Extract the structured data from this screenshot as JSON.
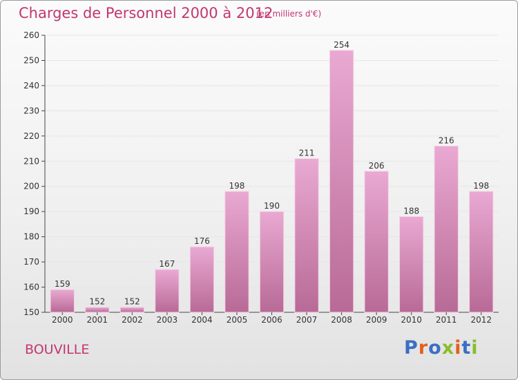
{
  "header": {
    "title": "Charges de Personnel 2000 à 2012",
    "subtitle": "(en milliers d'€)"
  },
  "footer": {
    "city": "BOUVILLE",
    "brand": "Proxiti"
  },
  "colors": {
    "title": "#c2366f",
    "bar_light": "#e9a9d2",
    "bar_dark": "#b86a96",
    "grid": "#e6e6e6",
    "axis": "#444444",
    "brand_letters": [
      "#3a6fc4",
      "#e2621c",
      "#3a6fc4",
      "#8abd2a",
      "#e2621c",
      "#3a6fc4",
      "#8abd2a"
    ]
  },
  "chart_data": {
    "type": "bar",
    "title": "Charges de Personnel 2000 à 2012",
    "subtitle": "(en milliers d'€)",
    "categories": [
      "2000",
      "2001",
      "2002",
      "2003",
      "2004",
      "2005",
      "2006",
      "2007",
      "2008",
      "2009",
      "2010",
      "2011",
      "2012"
    ],
    "values": [
      159,
      152,
      152,
      167,
      176,
      198,
      190,
      211,
      254,
      206,
      188,
      216,
      198
    ],
    "ylim": [
      150,
      260
    ],
    "yticks": [
      150,
      160,
      170,
      180,
      190,
      200,
      210,
      220,
      230,
      240,
      250,
      260
    ],
    "grid": true,
    "show_data_labels": true,
    "xlabel": "",
    "ylabel": ""
  }
}
